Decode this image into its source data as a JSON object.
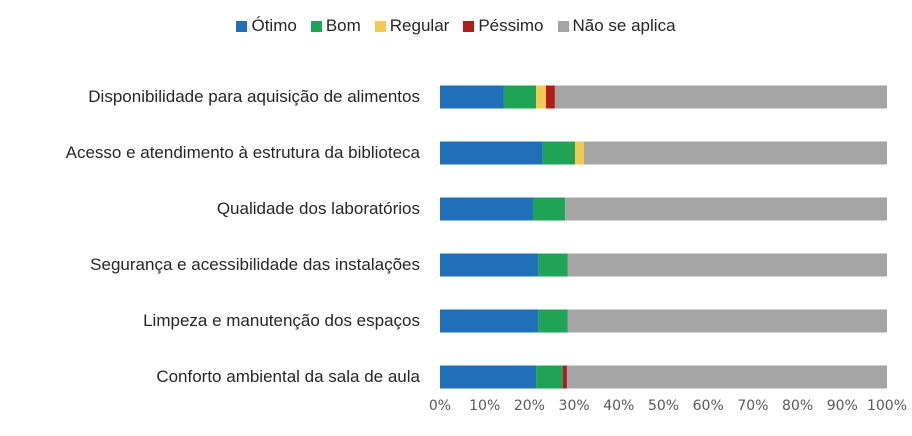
{
  "chart_data": {
    "type": "stacked_bar_horizontal",
    "categories": [
      "Disponibilidade para aquisição de alimentos",
      "Acesso e atendimento à estrutura da biblioteca",
      "Qualidade dos laboratórios",
      "Segurança e acessibilidade das instalações",
      "Limpeza e manutenção dos espaços",
      "Conforto ambiental da sala de aula"
    ],
    "series": [
      {
        "name": "Ótimo",
        "color": "#1f70b8",
        "values": [
          14.3,
          23,
          20.8,
          22,
          22,
          21.5
        ]
      },
      {
        "name": "Bom",
        "color": "#1fa355",
        "values": [
          7.2,
          7.2,
          7.2,
          6.6,
          6.6,
          6
        ]
      },
      {
        "name": "Regular",
        "color": "#f4c94f",
        "values": [
          2.2,
          2,
          0,
          0,
          0,
          0
        ]
      },
      {
        "name": "Péssimo",
        "color": "#b01b1b",
        "values": [
          2,
          0,
          0,
          0,
          0,
          0.9
        ]
      },
      {
        "name": "Não se aplica",
        "color": "#a5a5a5",
        "values": [
          74.3,
          67.8,
          72,
          71.4,
          71.4,
          71.6
        ]
      }
    ],
    "xlim": [
      0,
      100
    ],
    "xticks": [
      {
        "value": 0,
        "label": "0%"
      },
      {
        "value": 10,
        "label": "10%"
      },
      {
        "value": 20,
        "label": "20%"
      },
      {
        "value": 30,
        "label": "30%"
      },
      {
        "value": 40,
        "label": "40%"
      },
      {
        "value": 50,
        "label": "50%"
      },
      {
        "value": 60,
        "label": "60%"
      },
      {
        "value": 70,
        "label": "70%"
      },
      {
        "value": 80,
        "label": "80%"
      },
      {
        "value": 90,
        "label": "90%"
      },
      {
        "value": 100,
        "label": "100%"
      }
    ],
    "legend": "top",
    "grid": false
  }
}
